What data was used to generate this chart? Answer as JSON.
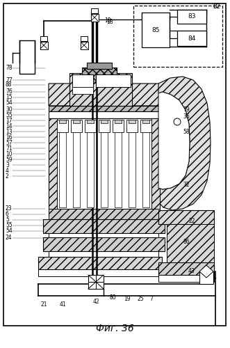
{
  "title": "Фиг. 36",
  "bg": "#ffffff",
  "fig_w": 3.31,
  "fig_h": 5.0,
  "dpi": 100,
  "labels_left": [
    [
      8,
      98,
      "78"
    ],
    [
      8,
      115,
      "77"
    ],
    [
      8,
      122,
      "88"
    ],
    [
      8,
      132,
      "76"
    ],
    [
      8,
      140,
      "15"
    ],
    [
      8,
      148,
      "54"
    ],
    [
      8,
      157,
      "30"
    ],
    [
      8,
      165,
      "55"
    ],
    [
      8,
      173,
      "17"
    ],
    [
      8,
      181,
      "14"
    ],
    [
      8,
      189,
      "13"
    ],
    [
      8,
      197,
      "16"
    ],
    [
      8,
      205,
      "57"
    ],
    [
      8,
      213,
      "71"
    ],
    [
      8,
      221,
      "10"
    ],
    [
      8,
      229,
      "59"
    ],
    [
      8,
      237,
      "3"
    ],
    [
      8,
      245,
      "4"
    ],
    [
      8,
      253,
      "2"
    ],
    [
      8,
      300,
      "23"
    ],
    [
      8,
      308,
      "6"
    ],
    [
      8,
      316,
      "5"
    ],
    [
      8,
      324,
      "55"
    ],
    [
      8,
      332,
      "54"
    ],
    [
      8,
      342,
      "24"
    ]
  ],
  "labels_right": [
    [
      260,
      158,
      "79"
    ],
    [
      260,
      167,
      "36"
    ],
    [
      260,
      190,
      "58"
    ],
    [
      260,
      265,
      "32"
    ],
    [
      260,
      348,
      "86"
    ],
    [
      268,
      318,
      "22"
    ],
    [
      268,
      390,
      "43"
    ]
  ]
}
